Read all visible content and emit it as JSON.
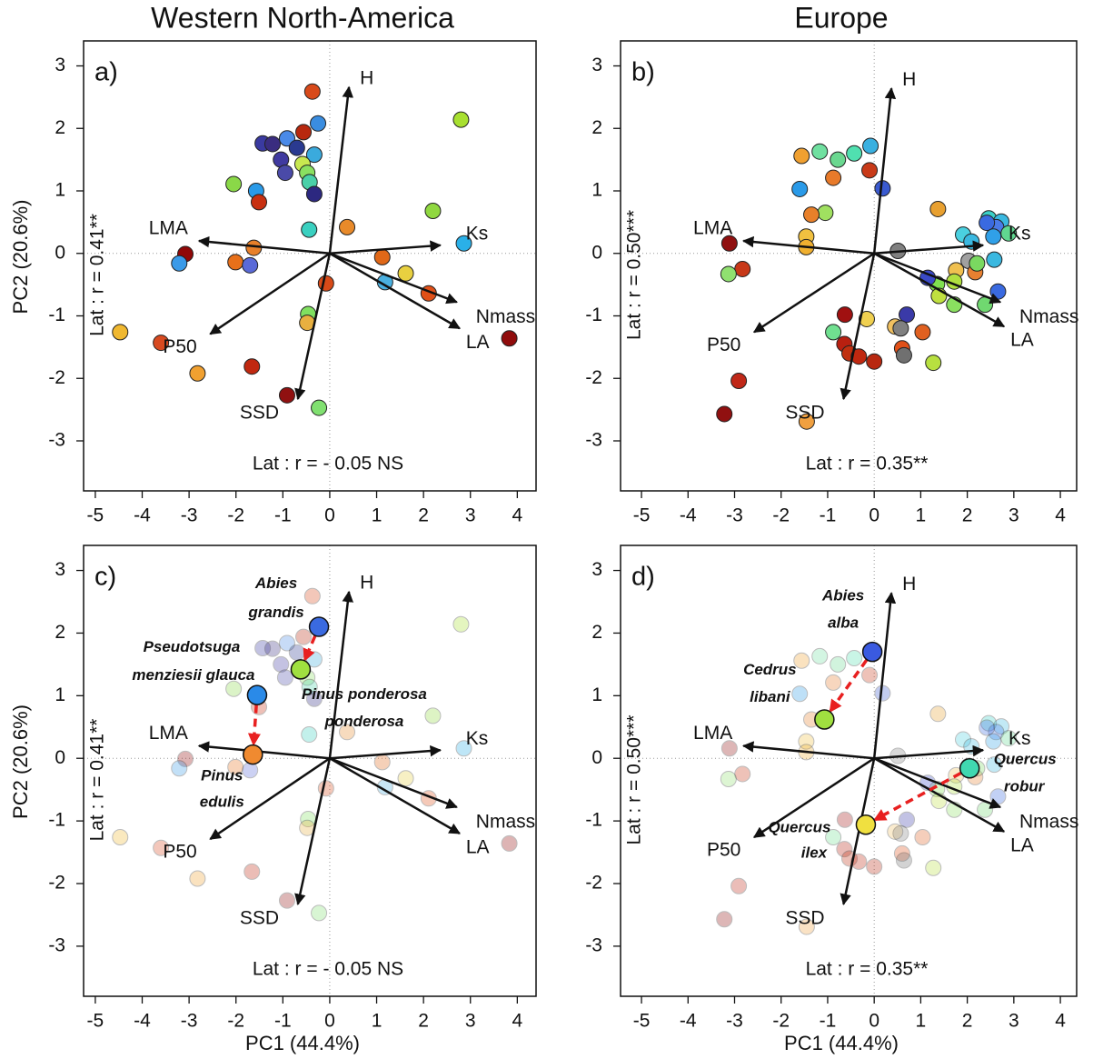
{
  "chart_data": [
    {
      "type": "biplot",
      "title": "Western North-America",
      "label": "a)",
      "ylabel": "PC2 (20.6%)",
      "r_x": "Lat : r = - 0.05 NS",
      "r_y": "Lat : r = 0.41**",
      "xlim": [
        -5.25,
        4.4
      ],
      "ylim": [
        -3.8,
        3.4
      ],
      "xticks": [
        -5,
        -4,
        -3,
        -2,
        -1,
        0,
        1,
        2,
        3,
        4
      ],
      "yticks": [
        -3,
        -2,
        -1,
        0,
        1,
        2,
        3
      ],
      "x": [
        -0.37,
        -0.25,
        -0.56,
        -1.43,
        -1.22,
        -0.91,
        -0.33,
        -0.7,
        -1.04,
        -0.58,
        -0.95,
        -0.48,
        -0.43,
        -0.33,
        -2.05,
        -1.57,
        -1.51,
        -0.44,
        0.37,
        2.2,
        2.8,
        2.86,
        -1.62,
        -2.01,
        -1.7,
        -3.08,
        -3.21,
        1.12,
        1.62,
        1.18,
        2.11,
        -0.08,
        -0.46,
        -0.48,
        -4.47,
        -3.6,
        -2.82,
        -1.66,
        -0.91,
        -0.23,
        3.83
      ],
      "y": [
        2.59,
        2.08,
        1.94,
        1.76,
        1.75,
        1.84,
        1.58,
        1.69,
        1.5,
        1.43,
        1.29,
        1.29,
        1.14,
        0.95,
        1.11,
        1.0,
        0.82,
        0.38,
        0.42,
        0.68,
        2.14,
        0.16,
        0.09,
        -0.14,
        -0.19,
        -0.01,
        -0.16,
        -0.06,
        -0.32,
        -0.46,
        -0.64,
        -0.48,
        -0.97,
        -1.11,
        -1.26,
        -1.43,
        -1.92,
        -1.81,
        -2.27,
        -2.47,
        -1.36
      ],
      "colors": [
        "#d84a1a",
        "#3a8de0",
        "#b8280e",
        "#3a3aa0",
        "#3a2d80",
        "#4a8ae8",
        "#3aaadd",
        "#2a3a90",
        "#403aa0",
        "#c8e850",
        "#4a4aa8",
        "#8ae060",
        "#4ad0a8",
        "#2c2880",
        "#8ad848",
        "#2a9ae8",
        "#c83010",
        "#3ad0c0",
        "#e88a2a",
        "#90d840",
        "#a8e030",
        "#2ab0e8",
        "#e8802a",
        "#e8701a",
        "#5a6ad8",
        "#900808",
        "#3a9ae8",
        "#e06818",
        "#e8d040",
        "#4ab0e0",
        "#e05018",
        "#d84a18",
        "#80e060",
        "#e8b040",
        "#f0b830",
        "#d84a20",
        "#f0a030",
        "#c02810",
        "#901010",
        "#80e070",
        "#900c0c"
      ],
      "loadings": {
        "labels": [
          "H",
          "Ks",
          "Nmass",
          "LA",
          "LMA",
          "P50",
          "SSD"
        ],
        "x": [
          0.41,
          2.36,
          2.71,
          2.77,
          -2.79,
          -2.55,
          -0.68
        ],
        "y": [
          2.66,
          0.13,
          -0.78,
          -1.2,
          0.2,
          -1.29,
          -2.33
        ]
      }
    },
    {
      "type": "biplot",
      "title": "Europe",
      "label": "b)",
      "r_x": "Lat : r = 0.35**",
      "r_y": "Lat : r = 0.50***",
      "xlim": [
        -5.45,
        4.35
      ],
      "ylim": [
        -3.8,
        3.4
      ],
      "xticks": [
        -5,
        -4,
        -3,
        -2,
        -1,
        0,
        1,
        2,
        3,
        4
      ],
      "yticks": [
        -3,
        -2,
        -1,
        0,
        1,
        2,
        3
      ],
      "x": [
        -0.08,
        -0.43,
        -0.78,
        -1.17,
        -1.56,
        -0.1,
        -0.88,
        -1.6,
        0.18,
        -1.05,
        -1.35,
        -1.46,
        -1.46,
        1.37,
        1.91,
        2.46,
        2.73,
        2.62,
        2.42,
        2.89,
        2.09,
        2.56,
        2.03,
        2.17,
        2.58,
        0.51,
        1.76,
        2.21,
        1.72,
        1.35,
        1.15,
        1.39,
        1.72,
        2.38,
        2.66,
        -3.11,
        -2.83,
        -3.13,
        0.7,
        -0.16,
        -0.63,
        -0.88,
        0.45,
        0.57,
        1.04,
        -0.64,
        -0.53,
        -0.33,
        0,
        0.6,
        0.64,
        1.27,
        -2.91,
        -3.22,
        -1.45
      ],
      "y": [
        1.72,
        1.6,
        1.5,
        1.63,
        1.56,
        1.33,
        1.21,
        1.03,
        1.04,
        0.65,
        0.62,
        0.27,
        0.1,
        0.71,
        0.3,
        0.56,
        0.51,
        0.42,
        0.49,
        0.32,
        0.19,
        0.27,
        -0.12,
        -0.3,
        -0.1,
        0.04,
        -0.27,
        -0.16,
        -0.45,
        -0.49,
        -0.39,
        -0.68,
        -0.82,
        -0.82,
        -0.61,
        0.16,
        -0.25,
        -0.33,
        -0.98,
        -1.05,
        -0.98,
        -1.26,
        -1.17,
        -1.2,
        -1.26,
        -1.45,
        -1.6,
        -1.65,
        -1.73,
        -1.52,
        -1.63,
        -1.75,
        -2.04,
        -2.57,
        -2.69
      ],
      "colors": [
        "#3ab0e0",
        "#50e0b0",
        "#6ad890",
        "#70e0a0",
        "#f0a030",
        "#c83a18",
        "#e87a2a",
        "#2a9ae8",
        "#3a5ad0",
        "#a0e060",
        "#e8802a",
        "#f0c040",
        "#f0b030",
        "#e8a030",
        "#4ad0e0",
        "#3ad0c8",
        "#3ab8e0",
        "#4a7ae8",
        "#3a6ae0",
        "#60d890",
        "#3ab8e0",
        "#30a0e8",
        "#a0a0a0",
        "#e88030",
        "#3ab8e0",
        "#808080",
        "#f0c050",
        "#7ad860",
        "#b0e040",
        "#80e050",
        "#3a4ac8",
        "#c0e040",
        "#8ae060",
        "#70d870",
        "#3a6ae0",
        "#901010",
        "#c83818",
        "#90e070",
        "#3a3aa8",
        "#f0d050",
        "#a01010",
        "#70e090",
        "#f0c060",
        "#808080",
        "#e06020",
        "#b82010",
        "#c03010",
        "#c02810",
        "#b82810",
        "#e05018",
        "#707070",
        "#b8e040",
        "#c02818",
        "#901010",
        "#f0a040"
      ],
      "loadings": {
        "labels": [
          "H",
          "Ks",
          "Nmass",
          "LA",
          "LMA",
          "P50",
          "SSD"
        ],
        "x": [
          0.37,
          2.34,
          2.71,
          2.79,
          -2.81,
          -2.58,
          -0.66
        ],
        "y": [
          2.64,
          0.13,
          -0.78,
          -1.17,
          0.2,
          -1.26,
          -2.33
        ]
      }
    },
    {
      "type": "biplot",
      "label": "c)",
      "xlabel": "PC1 (44.4%)",
      "ylabel": "PC2 (20.6%)",
      "r_x": "Lat : r = - 0.05 NS",
      "r_y": "Lat : r = 0.41**",
      "xlim": [
        -5.25,
        4.4
      ],
      "ylim": [
        -3.8,
        3.4
      ],
      "xticks": [
        -5,
        -4,
        -3,
        -2,
        -1,
        0,
        1,
        2,
        3,
        4
      ],
      "yticks": [
        -3,
        -2,
        -1,
        0,
        1,
        2,
        3
      ],
      "x": [
        -0.37,
        -0.25,
        -0.56,
        -1.43,
        -1.22,
        -0.91,
        -0.33,
        -0.7,
        -1.04,
        -0.58,
        -0.95,
        -0.48,
        -0.43,
        -0.33,
        -2.05,
        -1.57,
        -1.51,
        -0.44,
        0.37,
        2.2,
        2.8,
        2.86,
        -1.62,
        -2.01,
        -1.7,
        -3.08,
        -3.21,
        1.12,
        1.62,
        1.18,
        2.11,
        -0.08,
        -0.46,
        -0.48,
        -4.47,
        -3.6,
        -2.82,
        -1.66,
        -0.91,
        -0.23,
        3.83
      ],
      "y": [
        2.59,
        2.08,
        1.94,
        1.76,
        1.75,
        1.84,
        1.58,
        1.69,
        1.5,
        1.43,
        1.29,
        1.29,
        1.14,
        0.95,
        1.11,
        1.0,
        0.82,
        0.38,
        0.42,
        0.68,
        2.14,
        0.16,
        0.09,
        -0.14,
        -0.19,
        -0.01,
        -0.16,
        -0.06,
        -0.32,
        -0.46,
        -0.64,
        -0.48,
        -0.97,
        -1.11,
        -1.26,
        -1.43,
        -1.92,
        -1.81,
        -2.27,
        -2.47,
        -1.36
      ],
      "colors": [
        "#d84a1a",
        "#3a8de0",
        "#b8280e",
        "#3a3aa0",
        "#3a2d80",
        "#4a8ae8",
        "#3aaadd",
        "#2a3a90",
        "#403aa0",
        "#c8e850",
        "#4a4aa8",
        "#8ae060",
        "#4ad0a8",
        "#2c2880",
        "#8ad848",
        "#2a9ae8",
        "#c83010",
        "#3ad0c0",
        "#e88a2a",
        "#90d840",
        "#a8e030",
        "#2ab0e8",
        "#e8802a",
        "#e8701a",
        "#5a6ad8",
        "#900808",
        "#3a9ae8",
        "#e06818",
        "#e8d040",
        "#4ab0e0",
        "#e05018",
        "#d84a18",
        "#80e060",
        "#e8b040",
        "#f0b830",
        "#d84a20",
        "#f0a030",
        "#c02810",
        "#901010",
        "#80e070",
        "#900c0c"
      ],
      "loadings": {
        "labels": [
          "H",
          "Ks",
          "Nmass",
          "LA",
          "LMA",
          "P50",
          "SSD"
        ],
        "x": [
          0.41,
          2.36,
          2.71,
          2.77,
          -2.79,
          -2.55,
          -0.68
        ],
        "y": [
          2.66,
          0.13,
          -0.78,
          -1.2,
          0.2,
          -1.29,
          -2.33
        ]
      },
      "highlights": {
        "labels": [
          [
            "Abies",
            "grandis"
          ],
          [
            "Pinus ponderosa",
            "ponderosa"
          ],
          [
            "Pseudotsuga",
            "menziesii  glauca"
          ],
          [
            "Pinus",
            "edulis"
          ]
        ],
        "x": [
          -0.23,
          -0.62,
          -1.55,
          -1.64
        ],
        "y": [
          2.1,
          1.42,
          1.01,
          0.06
        ],
        "colors": [
          "#3a6ae0",
          "#a0e040",
          "#2a8ae8",
          "#f08a30"
        ]
      }
    },
    {
      "type": "biplot",
      "label": "d)",
      "xlabel": "PC1 (44.4%)",
      "r_x": "Lat : r = 0.35**",
      "r_y": "Lat : r = 0.50***",
      "xlim": [
        -5.45,
        4.35
      ],
      "ylim": [
        -3.8,
        3.4
      ],
      "xticks": [
        -5,
        -4,
        -3,
        -2,
        -1,
        0,
        1,
        2,
        3,
        4
      ],
      "yticks": [
        -3,
        -2,
        -1,
        0,
        1,
        2,
        3
      ],
      "x": [
        -0.08,
        -0.43,
        -0.78,
        -1.17,
        -1.56,
        -0.1,
        -0.88,
        -1.6,
        0.18,
        -1.05,
        -1.35,
        -1.46,
        -1.46,
        1.37,
        1.91,
        2.46,
        2.73,
        2.62,
        2.42,
        2.89,
        2.09,
        2.56,
        2.03,
        2.17,
        2.58,
        0.51,
        1.76,
        2.21,
        1.72,
        1.35,
        1.15,
        1.39,
        1.72,
        2.38,
        2.66,
        -3.11,
        -2.83,
        -3.13,
        0.7,
        -0.16,
        -0.63,
        -0.88,
        0.45,
        0.57,
        1.04,
        -0.64,
        -0.53,
        -0.33,
        0,
        0.6,
        0.64,
        1.27,
        -2.91,
        -3.22,
        -1.45
      ],
      "y": [
        1.72,
        1.6,
        1.5,
        1.63,
        1.56,
        1.33,
        1.21,
        1.03,
        1.04,
        0.65,
        0.62,
        0.27,
        0.1,
        0.71,
        0.3,
        0.56,
        0.51,
        0.42,
        0.49,
        0.32,
        0.19,
        0.27,
        -0.12,
        -0.3,
        -0.1,
        0.04,
        -0.27,
        -0.16,
        -0.45,
        -0.49,
        -0.39,
        -0.68,
        -0.82,
        -0.82,
        -0.61,
        0.16,
        -0.25,
        -0.33,
        -0.98,
        -1.05,
        -0.98,
        -1.26,
        -1.17,
        -1.2,
        -1.26,
        -1.45,
        -1.6,
        -1.65,
        -1.73,
        -1.52,
        -1.63,
        -1.75,
        -2.04,
        -2.57,
        -2.69
      ],
      "colors": [
        "#3ab0e0",
        "#50e0b0",
        "#6ad890",
        "#70e0a0",
        "#f0a030",
        "#c83a18",
        "#e87a2a",
        "#2a9ae8",
        "#3a5ad0",
        "#a0e060",
        "#e8802a",
        "#f0c040",
        "#f0b030",
        "#e8a030",
        "#4ad0e0",
        "#3ad0c8",
        "#3ab8e0",
        "#4a7ae8",
        "#3a6ae0",
        "#60d890",
        "#3ab8e0",
        "#30a0e8",
        "#a0a0a0",
        "#e88030",
        "#3ab8e0",
        "#808080",
        "#f0c050",
        "#7ad860",
        "#b0e040",
        "#80e050",
        "#3a4ac8",
        "#c0e040",
        "#8ae060",
        "#70d870",
        "#3a6ae0",
        "#901010",
        "#c83818",
        "#90e070",
        "#3a3aa8",
        "#f0d050",
        "#a01010",
        "#70e090",
        "#f0c060",
        "#808080",
        "#e06020",
        "#b82010",
        "#c03010",
        "#c02810",
        "#b82810",
        "#e05018",
        "#707070",
        "#b8e040",
        "#c02818",
        "#901010",
        "#f0a040"
      ],
      "loadings": {
        "labels": [
          "H",
          "Ks",
          "Nmass",
          "LA",
          "LMA",
          "P50",
          "SSD"
        ],
        "x": [
          0.37,
          2.34,
          2.71,
          2.79,
          -2.81,
          -2.58,
          -0.66
        ],
        "y": [
          2.64,
          0.13,
          -0.78,
          -1.17,
          0.2,
          -1.26,
          -2.33
        ]
      },
      "highlights": {
        "labels": [
          [
            "Abies",
            "alba"
          ],
          [
            "Cedrus",
            "libani"
          ],
          [
            "Quercus",
            "robur"
          ],
          [
            "Quercus",
            "ilex"
          ]
        ],
        "x": [
          -0.04,
          -1.07,
          2.05,
          -0.18
        ],
        "y": [
          1.7,
          0.62,
          -0.16,
          -1.06
        ],
        "colors": [
          "#3a5ae0",
          "#a0e040",
          "#40d8b0",
          "#f0e040"
        ]
      }
    }
  ]
}
